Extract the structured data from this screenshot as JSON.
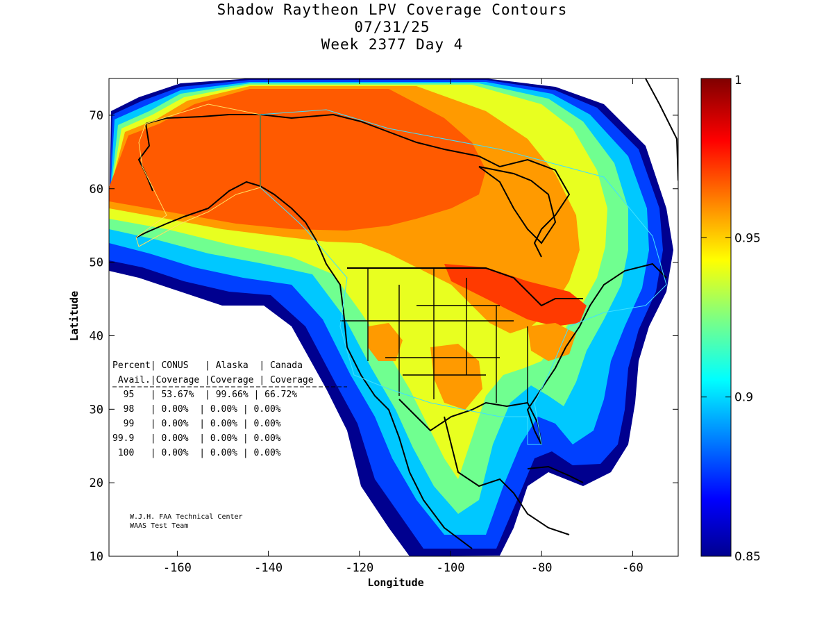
{
  "title": {
    "line1": "Shadow Raytheon LPV Coverage Contours",
    "line2": "07/31/25",
    "line3": "Week 2377 Day 4"
  },
  "axes": {
    "xlabel": "Longitude",
    "ylabel": "Latitude",
    "xlim": [
      -175,
      -50
    ],
    "ylim": [
      10,
      75
    ],
    "xticks": [
      -160,
      -140,
      -120,
      -100,
      -80,
      -60
    ],
    "yticks": [
      10,
      20,
      30,
      40,
      50,
      60,
      70
    ]
  },
  "colorbar": {
    "range": [
      0.85,
      1
    ],
    "ticks": [
      "1",
      "0.95",
      "0.9",
      "0.85"
    ],
    "colors": [
      "#00008f",
      "#0000cf",
      "#0030ff",
      "#0070ff",
      "#00b0ff",
      "#10e0ff",
      "#50ffb0",
      "#90ff70",
      "#d0ff30",
      "#ffff00",
      "#ffd000",
      "#ff9000",
      "#ff5000",
      "#ff1000",
      "#d00000",
      "#8f0000"
    ]
  },
  "table": {
    "header1": "Percent| CONUS   | Alaska  | Canada",
    "header2": " Avail.|Coverage |Coverage | Coverage",
    "rows": [
      "  95   | 53.67%  | 99.66% | 66.72%",
      "  98   | 0.00%  | 0.00% | 0.00%",
      "  99   | 0.00%  | 0.00% | 0.00%",
      "99.9   | 0.00%  | 0.00% | 0.00%",
      " 100   | 0.00%  | 0.00% | 0.00%"
    ]
  },
  "credit": {
    "line1": "W.J.H. FAA Technical Center",
    "line2": "WAAS Test Team"
  }
}
